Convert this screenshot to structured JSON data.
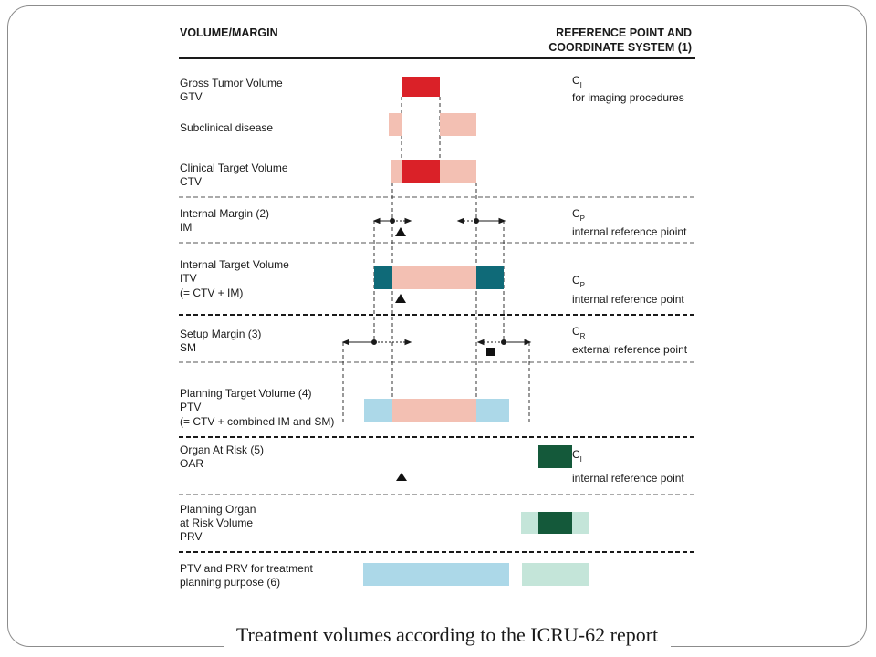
{
  "header": {
    "left_label": "VOLUME/MARGIN",
    "right_label_line1": "REFERENCE POINT AND",
    "right_label_line2": "COORDINATE SYSTEM (1)"
  },
  "rows": [
    {
      "lines": [
        "Gross Tumor Volume",
        "GTV"
      ]
    },
    {
      "lines": [
        "Subclinical disease"
      ]
    },
    {
      "lines": [
        "Clinical Target Volume",
        "CTV"
      ]
    },
    {
      "lines": [
        "Internal Margin (2)",
        "IM"
      ]
    },
    {
      "lines": [
        "Internal Target Volume",
        "ITV",
        "(= CTV + IM)"
      ]
    },
    {
      "lines": [
        "Setup Margin (3)",
        "SM"
      ]
    },
    {
      "lines": [
        "Planning Target Volume (4)",
        "PTV",
        "(= CTV + combined IM and SM)"
      ]
    },
    {
      "lines": [
        "Organ At Risk (5)",
        "OAR"
      ]
    },
    {
      "lines": [
        "Planning Organ",
        "at Risk Volume",
        "PRV"
      ]
    },
    {
      "lines": [
        "PTV and PRV for treatment",
        "planning purpose (6)"
      ]
    }
  ],
  "references": [
    {
      "symbol": "C",
      "sub": "I",
      "text": "for imaging procedures"
    },
    {
      "symbol": "C",
      "sub": "P",
      "text": "internal reference pioint"
    },
    {
      "symbol": "C",
      "sub": "P",
      "text": "internal reference point"
    },
    {
      "symbol": "C",
      "sub": "R",
      "text": "external reference point"
    },
    {
      "symbol": "C",
      "sub": "I",
      "text": "internal reference point"
    }
  ],
  "caption": "Treatment volumes according to the ICRU-62 report",
  "colors": {
    "gtv_red": "#da2128",
    "subclinical_pink": "#f3c0b3",
    "itv_teal": "#0f6a78",
    "ptv_light_blue": "#acd8e8",
    "oar_dark_green": "#14593a",
    "prv_light_green": "#c4e5d9",
    "line": "#333333"
  }
}
